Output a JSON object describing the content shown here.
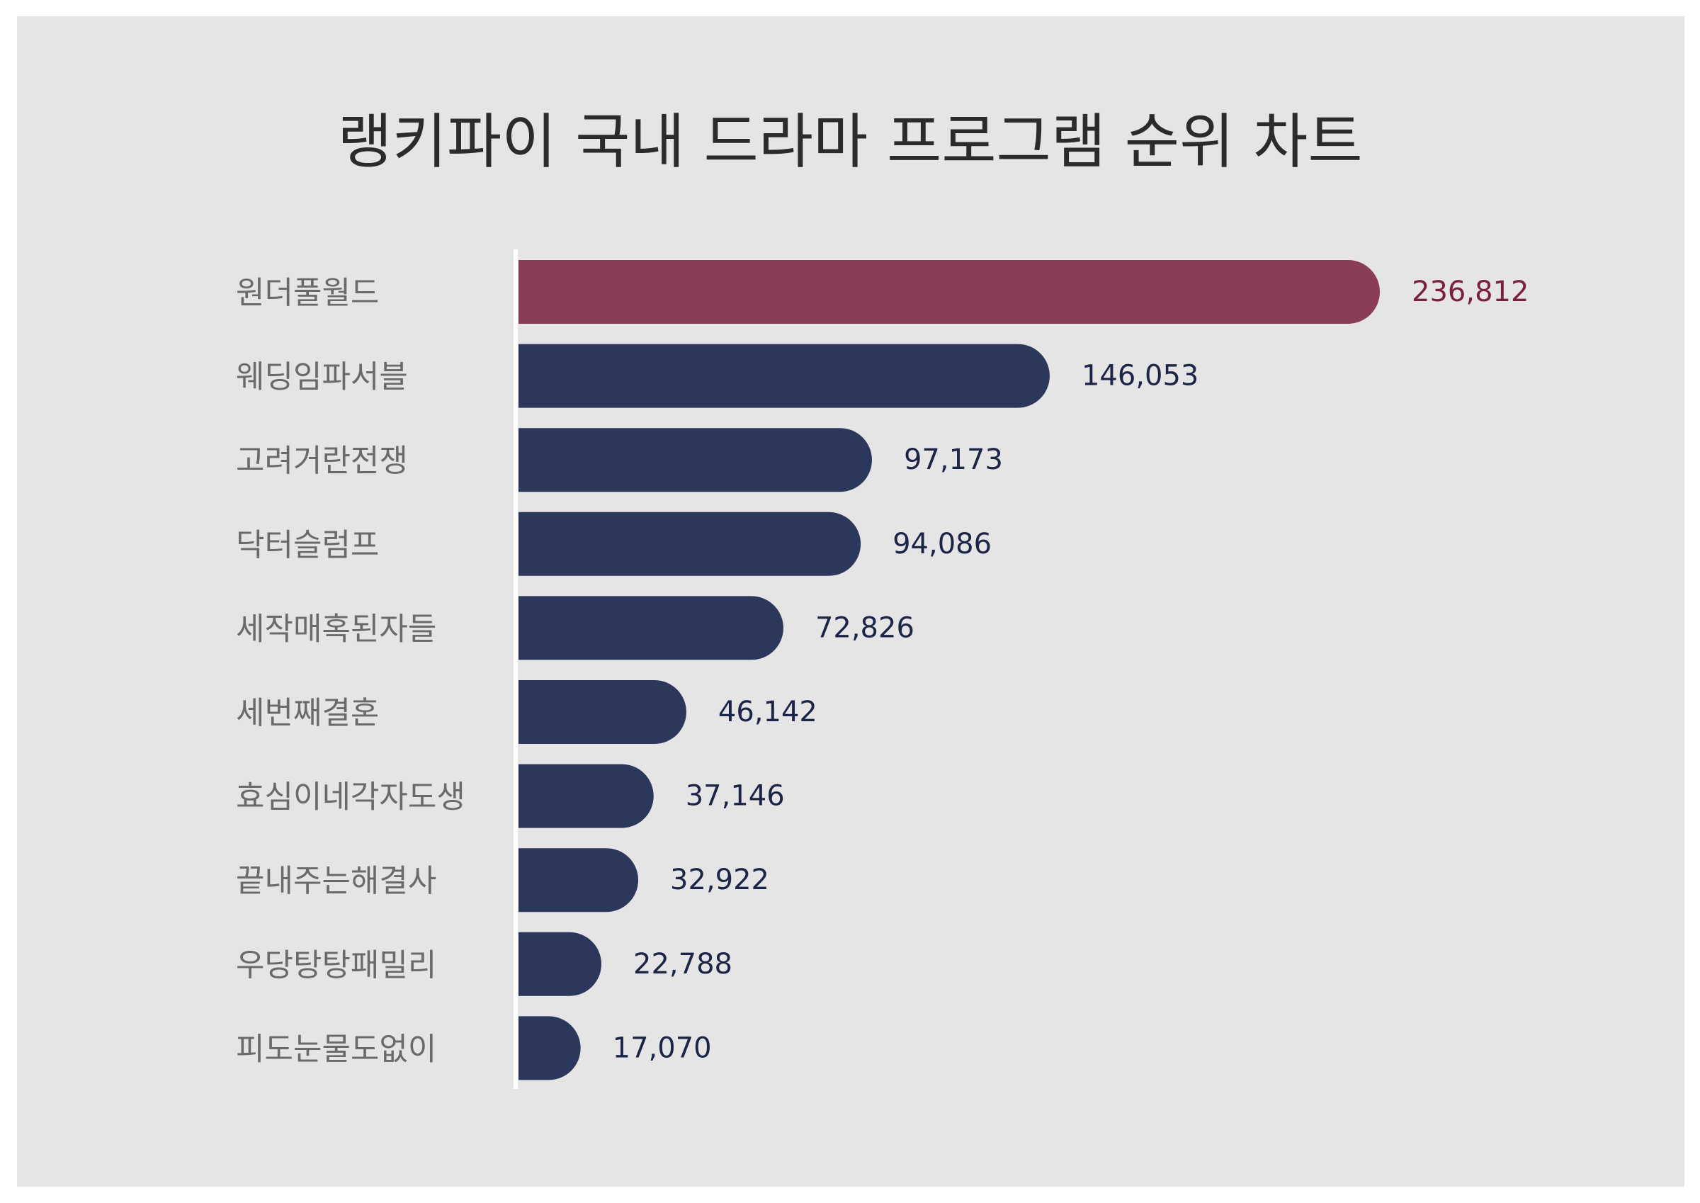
{
  "chart_data": {
    "type": "bar",
    "orientation": "horizontal",
    "title": "랭키파이 국내 드라마 프로그램 순위 차트",
    "categories": [
      "원더풀월드",
      "웨딩임파서블",
      "고려거란전쟁",
      "닥터슬럼프",
      "세작매혹된자들",
      "세번째결혼",
      "효심이네각자도생",
      "끝내주는해결사",
      "우당탕탕패밀리",
      "피도눈물도없이"
    ],
    "values": [
      236812,
      146053,
      97173,
      94086,
      72826,
      46142,
      37146,
      32922,
      22788,
      17070
    ],
    "value_labels": [
      "236,812",
      "146,053",
      "97,173",
      "94,086",
      "72,826",
      "46,142",
      "37,146",
      "32,922",
      "22,788",
      "17,070"
    ],
    "highlight_index": 0,
    "grid": false,
    "legend": "none"
  },
  "colors": {
    "background": "#e6e5e6",
    "highlight_bar": "#8a3c58",
    "bar": "#2c375c",
    "highlight_label": "#7a1f3f",
    "value_label": "#1c2447",
    "category_label": "#6a6a6a",
    "title": "#2b2b2b",
    "axis_line": "#ffffff"
  }
}
